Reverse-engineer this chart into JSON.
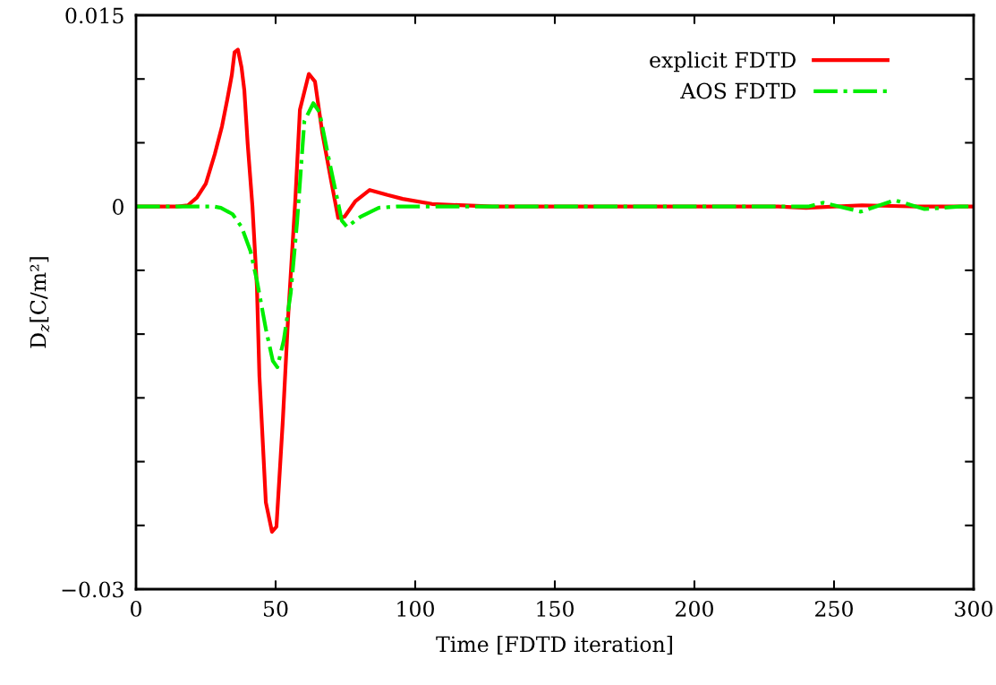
{
  "chart_data": {
    "type": "line",
    "xlabel": "Time [FDTD iteration]",
    "ylabel": "D$_{z}$[C/m²]",
    "xlim": [
      0,
      300
    ],
    "xticks": [
      0,
      50,
      100,
      150,
      200,
      250,
      300
    ],
    "ylim": [
      -0.03,
      0.015
    ],
    "yticks": [
      {
        "value": -0.03,
        "label": "−0.03"
      },
      {
        "value": -0.025,
        "label": null
      },
      {
        "value": -0.02,
        "label": null
      },
      {
        "value": -0.015,
        "label": null
      },
      {
        "value": -0.01,
        "label": null
      },
      {
        "value": -0.005,
        "label": null
      },
      0,
      {
        "value": 0.005,
        "label": null
      },
      {
        "value": 0.01,
        "label": null
      },
      0.015
    ],
    "grid": false,
    "legend": "top right",
    "series": [
      {
        "name": "explicit FDTD",
        "color": "#ff0000",
        "line_style": "solid",
        "x": [
          0,
          15,
          18.6,
          21.8,
          25,
          28.2,
          30.8,
          32.7,
          34.3,
          35.3,
          36.5,
          37.8,
          38.8,
          40,
          41.7,
          43.3,
          44.2,
          46.5,
          48.7,
          50.3,
          52.6,
          54.5,
          57.1,
          58.7,
          61.9,
          64.1,
          66.7,
          69.9,
          72.4,
          74.7,
          78.5,
          83.7,
          90.1,
          95.5,
          106,
          127.6,
          230,
          240,
          260,
          280,
          300
        ],
        "values": [
          0,
          0,
          0.0001,
          0.0007,
          0.0018,
          0.0041,
          0.0063,
          0.0084,
          0.0103,
          0.0121,
          0.0123,
          0.0109,
          0.0091,
          0.0049,
          0,
          -0.0063,
          -0.0133,
          -0.0232,
          -0.0255,
          -0.0251,
          -0.0167,
          -0.0086,
          0.0007,
          0.0076,
          0.0104,
          0.0098,
          0.0058,
          0.002,
          -0.0009,
          -0.0008,
          0.0004,
          0.0013,
          0.0009,
          0.0006,
          0.0002,
          0,
          0,
          -0.0001,
          0.0001,
          0,
          0
        ]
      },
      {
        "name": "AOS FDTD",
        "color": "#00ee00",
        "line_style": "dashdot",
        "x": [
          0,
          28,
          30.4,
          34.6,
          37.8,
          41,
          43.3,
          46.5,
          49,
          50.6,
          52.9,
          55.4,
          57.7,
          60.3,
          63.5,
          65.7,
          68.9,
          73.7,
          75.6,
          80.4,
          86.9,
          93.3,
          240.7,
          246,
          259.6,
          271.8,
          282.4,
          295,
          300
        ],
        "values": [
          0,
          0,
          -0.0001,
          -0.0006,
          -0.0016,
          -0.0035,
          -0.0058,
          -0.0096,
          -0.0121,
          -0.0126,
          -0.0105,
          -0.0068,
          -0.0012,
          0.0067,
          0.0081,
          0.0074,
          0.0039,
          -0.0011,
          -0.0016,
          -0.0008,
          -0.0001,
          0,
          0,
          0.0003,
          -0.0004,
          0.0005,
          -0.0002,
          0,
          0
        ]
      }
    ]
  }
}
